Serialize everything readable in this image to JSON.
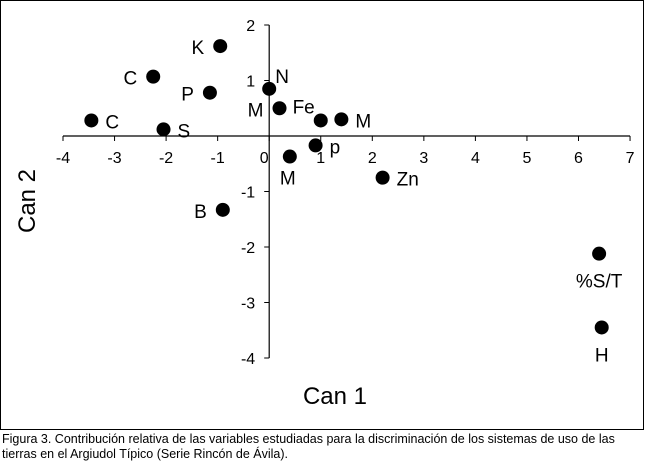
{
  "chart_data": {
    "type": "scatter",
    "xlabel": "Can 1",
    "ylabel": "Can 2",
    "xlim": [
      -4,
      7
    ],
    "ylim": [
      -4,
      2
    ],
    "xticks": [
      -4,
      -3,
      -2,
      -1,
      0,
      1,
      2,
      3,
      4,
      5,
      6,
      7
    ],
    "yticks": [
      2,
      1,
      0,
      -1,
      -2,
      -3,
      -4
    ],
    "grid": false,
    "points": [
      {
        "label": "K",
        "x": -0.95,
        "y": 1.62,
        "label_side": "left"
      },
      {
        "label": "C",
        "x": -2.25,
        "y": 1.07,
        "label_side": "left"
      },
      {
        "label": "P",
        "x": -1.15,
        "y": 0.78,
        "label_side": "left"
      },
      {
        "label": "N",
        "x": 0.0,
        "y": 0.85,
        "label_side": "upper-right"
      },
      {
        "label": "M",
        "x": 0.2,
        "y": 0.5,
        "label_side": "left"
      },
      {
        "label": "C",
        "x": -3.45,
        "y": 0.28,
        "label_side": "right"
      },
      {
        "label": "S",
        "x": -2.05,
        "y": 0.12,
        "label_side": "right"
      },
      {
        "label": "Fe",
        "x": 1.0,
        "y": 0.28,
        "label_side": "upper-left"
      },
      {
        "label": "M",
        "x": 1.4,
        "y": 0.3,
        "label_side": "right"
      },
      {
        "label": "p",
        "x": 0.9,
        "y": -0.17,
        "label_side": "right"
      },
      {
        "label": "M",
        "x": 0.4,
        "y": -0.37,
        "label_side": "below-left"
      },
      {
        "label": "Zn",
        "x": 2.2,
        "y": -0.75,
        "label_side": "right"
      },
      {
        "label": "B",
        "x": -0.9,
        "y": -1.33,
        "label_side": "left"
      },
      {
        "label": "%S/T",
        "x": 6.4,
        "y": -2.12,
        "label_side": "below"
      },
      {
        "label": "H",
        "x": 6.45,
        "y": -3.45,
        "label_side": "below"
      }
    ]
  },
  "caption": "Figura 3. Contribución relativa de las variables estudiadas para la discriminación de los sistemas de uso de las tierras en el Argiudol Típico (Serie Rincón de Ávila)."
}
